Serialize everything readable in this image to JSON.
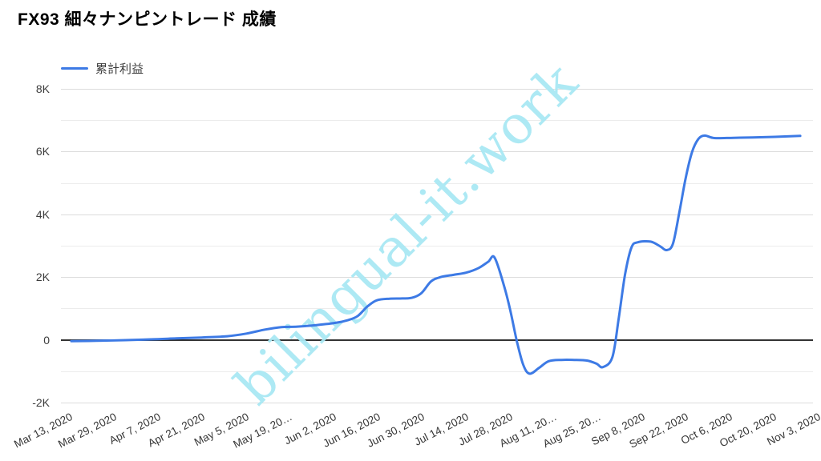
{
  "title": "FX93 細々ナンピントレード 成績",
  "legend": {
    "label": "累計利益",
    "color": "#3d7ae5"
  },
  "watermark": {
    "text": "bilingual-it.work",
    "color": "#a9e8f3"
  },
  "chart_data": {
    "type": "line",
    "title": "FX93 細々ナンピントレード 成績",
    "series_name": "累計利益",
    "line_color": "#3d7ae5",
    "grid": "horizontal-only",
    "legend_position": "top-left",
    "x_range": [
      "2020-03-13",
      "2020-11-03"
    ],
    "x_tick_labels": [
      "Mar 13, 2020",
      "Mar 29, 2020",
      "Apr 7, 2020",
      "Apr 21, 2020",
      "May 5, 2020",
      "May 19, 20…",
      "Jun 2, 2020",
      "Jun 16, 2020",
      "Jun 30, 2020",
      "Jul 14, 2020",
      "Jul 28, 2020",
      "Aug 11, 20…",
      "Aug 25, 20…",
      "Sep 8, 2020",
      "Sep 22, 2020",
      "Oct 6, 2020",
      "Oct 20, 2020",
      "Nov 3, 2020"
    ],
    "y_axis": {
      "min": -2000,
      "max": 8000,
      "major_step": 2000,
      "minor_step": 1000,
      "major_tick_labels": [
        "8K",
        "6K",
        "4K",
        "2K",
        "0",
        "-2K"
      ]
    },
    "points": [
      {
        "date": "2020-03-16",
        "value": -40
      },
      {
        "date": "2020-03-24",
        "value": -30
      },
      {
        "date": "2020-04-02",
        "value": -10
      },
      {
        "date": "2020-04-10",
        "value": 15
      },
      {
        "date": "2020-04-18",
        "value": 45
      },
      {
        "date": "2020-04-26",
        "value": 75
      },
      {
        "date": "2020-05-04",
        "value": 115
      },
      {
        "date": "2020-05-10",
        "value": 200
      },
      {
        "date": "2020-05-16",
        "value": 330
      },
      {
        "date": "2020-05-21",
        "value": 405
      },
      {
        "date": "2020-05-26",
        "value": 420
      },
      {
        "date": "2020-06-01",
        "value": 470
      },
      {
        "date": "2020-06-07",
        "value": 540
      },
      {
        "date": "2020-06-11",
        "value": 630
      },
      {
        "date": "2020-06-14",
        "value": 760
      },
      {
        "date": "2020-06-17",
        "value": 1060
      },
      {
        "date": "2020-06-20",
        "value": 1260
      },
      {
        "date": "2020-06-24",
        "value": 1310
      },
      {
        "date": "2020-06-28",
        "value": 1320
      },
      {
        "date": "2020-07-01",
        "value": 1340
      },
      {
        "date": "2020-07-04",
        "value": 1490
      },
      {
        "date": "2020-07-07",
        "value": 1860
      },
      {
        "date": "2020-07-10",
        "value": 2000
      },
      {
        "date": "2020-07-14",
        "value": 2070
      },
      {
        "date": "2020-07-18",
        "value": 2140
      },
      {
        "date": "2020-07-22",
        "value": 2290
      },
      {
        "date": "2020-07-25",
        "value": 2490
      },
      {
        "date": "2020-07-27",
        "value": 2620
      },
      {
        "date": "2020-07-30",
        "value": 1700
      },
      {
        "date": "2020-08-01",
        "value": 900
      },
      {
        "date": "2020-08-03",
        "value": -50
      },
      {
        "date": "2020-08-05",
        "value": -800
      },
      {
        "date": "2020-08-07",
        "value": -1080
      },
      {
        "date": "2020-08-10",
        "value": -890
      },
      {
        "date": "2020-08-13",
        "value": -680
      },
      {
        "date": "2020-08-17",
        "value": -640
      },
      {
        "date": "2020-08-21",
        "value": -640
      },
      {
        "date": "2020-08-25",
        "value": -660
      },
      {
        "date": "2020-08-28",
        "value": -760
      },
      {
        "date": "2020-08-30",
        "value": -870
      },
      {
        "date": "2020-09-02",
        "value": -550
      },
      {
        "date": "2020-09-04",
        "value": 700
      },
      {
        "date": "2020-09-06",
        "value": 2100
      },
      {
        "date": "2020-09-08",
        "value": 2950
      },
      {
        "date": "2020-09-10",
        "value": 3110
      },
      {
        "date": "2020-09-14",
        "value": 3130
      },
      {
        "date": "2020-09-17",
        "value": 2980
      },
      {
        "date": "2020-09-19",
        "value": 2860
      },
      {
        "date": "2020-09-21",
        "value": 3060
      },
      {
        "date": "2020-09-23",
        "value": 4050
      },
      {
        "date": "2020-09-25",
        "value": 5150
      },
      {
        "date": "2020-09-27",
        "value": 5980
      },
      {
        "date": "2020-09-29",
        "value": 6400
      },
      {
        "date": "2020-10-01",
        "value": 6510
      },
      {
        "date": "2020-10-04",
        "value": 6430
      },
      {
        "date": "2020-10-10",
        "value": 6440
      },
      {
        "date": "2020-10-16",
        "value": 6450
      },
      {
        "date": "2020-10-23",
        "value": 6470
      },
      {
        "date": "2020-10-31",
        "value": 6500
      }
    ]
  }
}
